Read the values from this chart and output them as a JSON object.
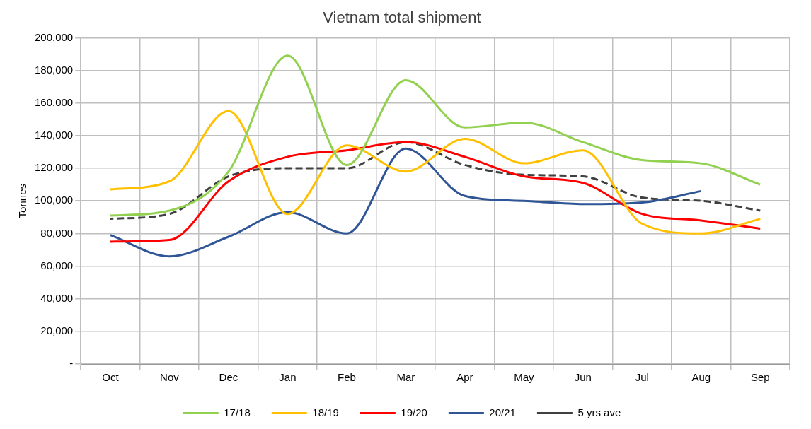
{
  "chart_data": {
    "type": "line",
    "title": "Vietnam total shipment",
    "ylabel": "Tonnes",
    "categories": [
      "Oct",
      "Nov",
      "Dec",
      "Jan",
      "Feb",
      "Mar",
      "Apr",
      "May",
      "Jun",
      "Jul",
      "Aug",
      "Sep"
    ],
    "series": [
      {
        "name": "17/18",
        "color": "#92d050",
        "values": [
          91000,
          94000,
          118000,
          189000,
          122000,
          174000,
          145000,
          148000,
          136000,
          125000,
          123000,
          110000
        ]
      },
      {
        "name": "18/19",
        "color": "#ffc000",
        "values": [
          107000,
          112000,
          155000,
          92000,
          134000,
          118000,
          138000,
          123000,
          131000,
          86000,
          80000,
          89000
        ]
      },
      {
        "name": "19/20",
        "color": "#ff0000",
        "values": [
          75000,
          76000,
          112000,
          127000,
          131000,
          136000,
          127000,
          115000,
          111000,
          92000,
          88000,
          83000
        ]
      },
      {
        "name": "20/21",
        "color": "#2f5597",
        "values": [
          79000,
          66000,
          78000,
          93000,
          80000,
          132000,
          103000,
          100000,
          98000,
          99000,
          106000,
          null
        ]
      },
      {
        "name": "5 yrs ave",
        "color": "#404040",
        "line_style": "dashed",
        "values": [
          89000,
          92000,
          115000,
          120000,
          120000,
          136000,
          122000,
          116000,
          115000,
          102000,
          100000,
          94000
        ]
      }
    ],
    "ylim": [
      0,
      200000
    ],
    "yticks": [
      {
        "value": 0,
        "label": "-"
      },
      {
        "value": 20000,
        "label": "20,000"
      },
      {
        "value": 40000,
        "label": "40,000"
      },
      {
        "value": 60000,
        "label": "60,000"
      },
      {
        "value": 80000,
        "label": "80,000"
      },
      {
        "value": 100000,
        "label": "100,000"
      },
      {
        "value": 120000,
        "label": "120,000"
      },
      {
        "value": 140000,
        "label": "140,000"
      },
      {
        "value": 160000,
        "label": "160,000"
      },
      {
        "value": 180000,
        "label": "180,000"
      },
      {
        "value": 200000,
        "label": "200,000"
      }
    ],
    "grid": true,
    "legend": "bottom",
    "marker": "none"
  }
}
